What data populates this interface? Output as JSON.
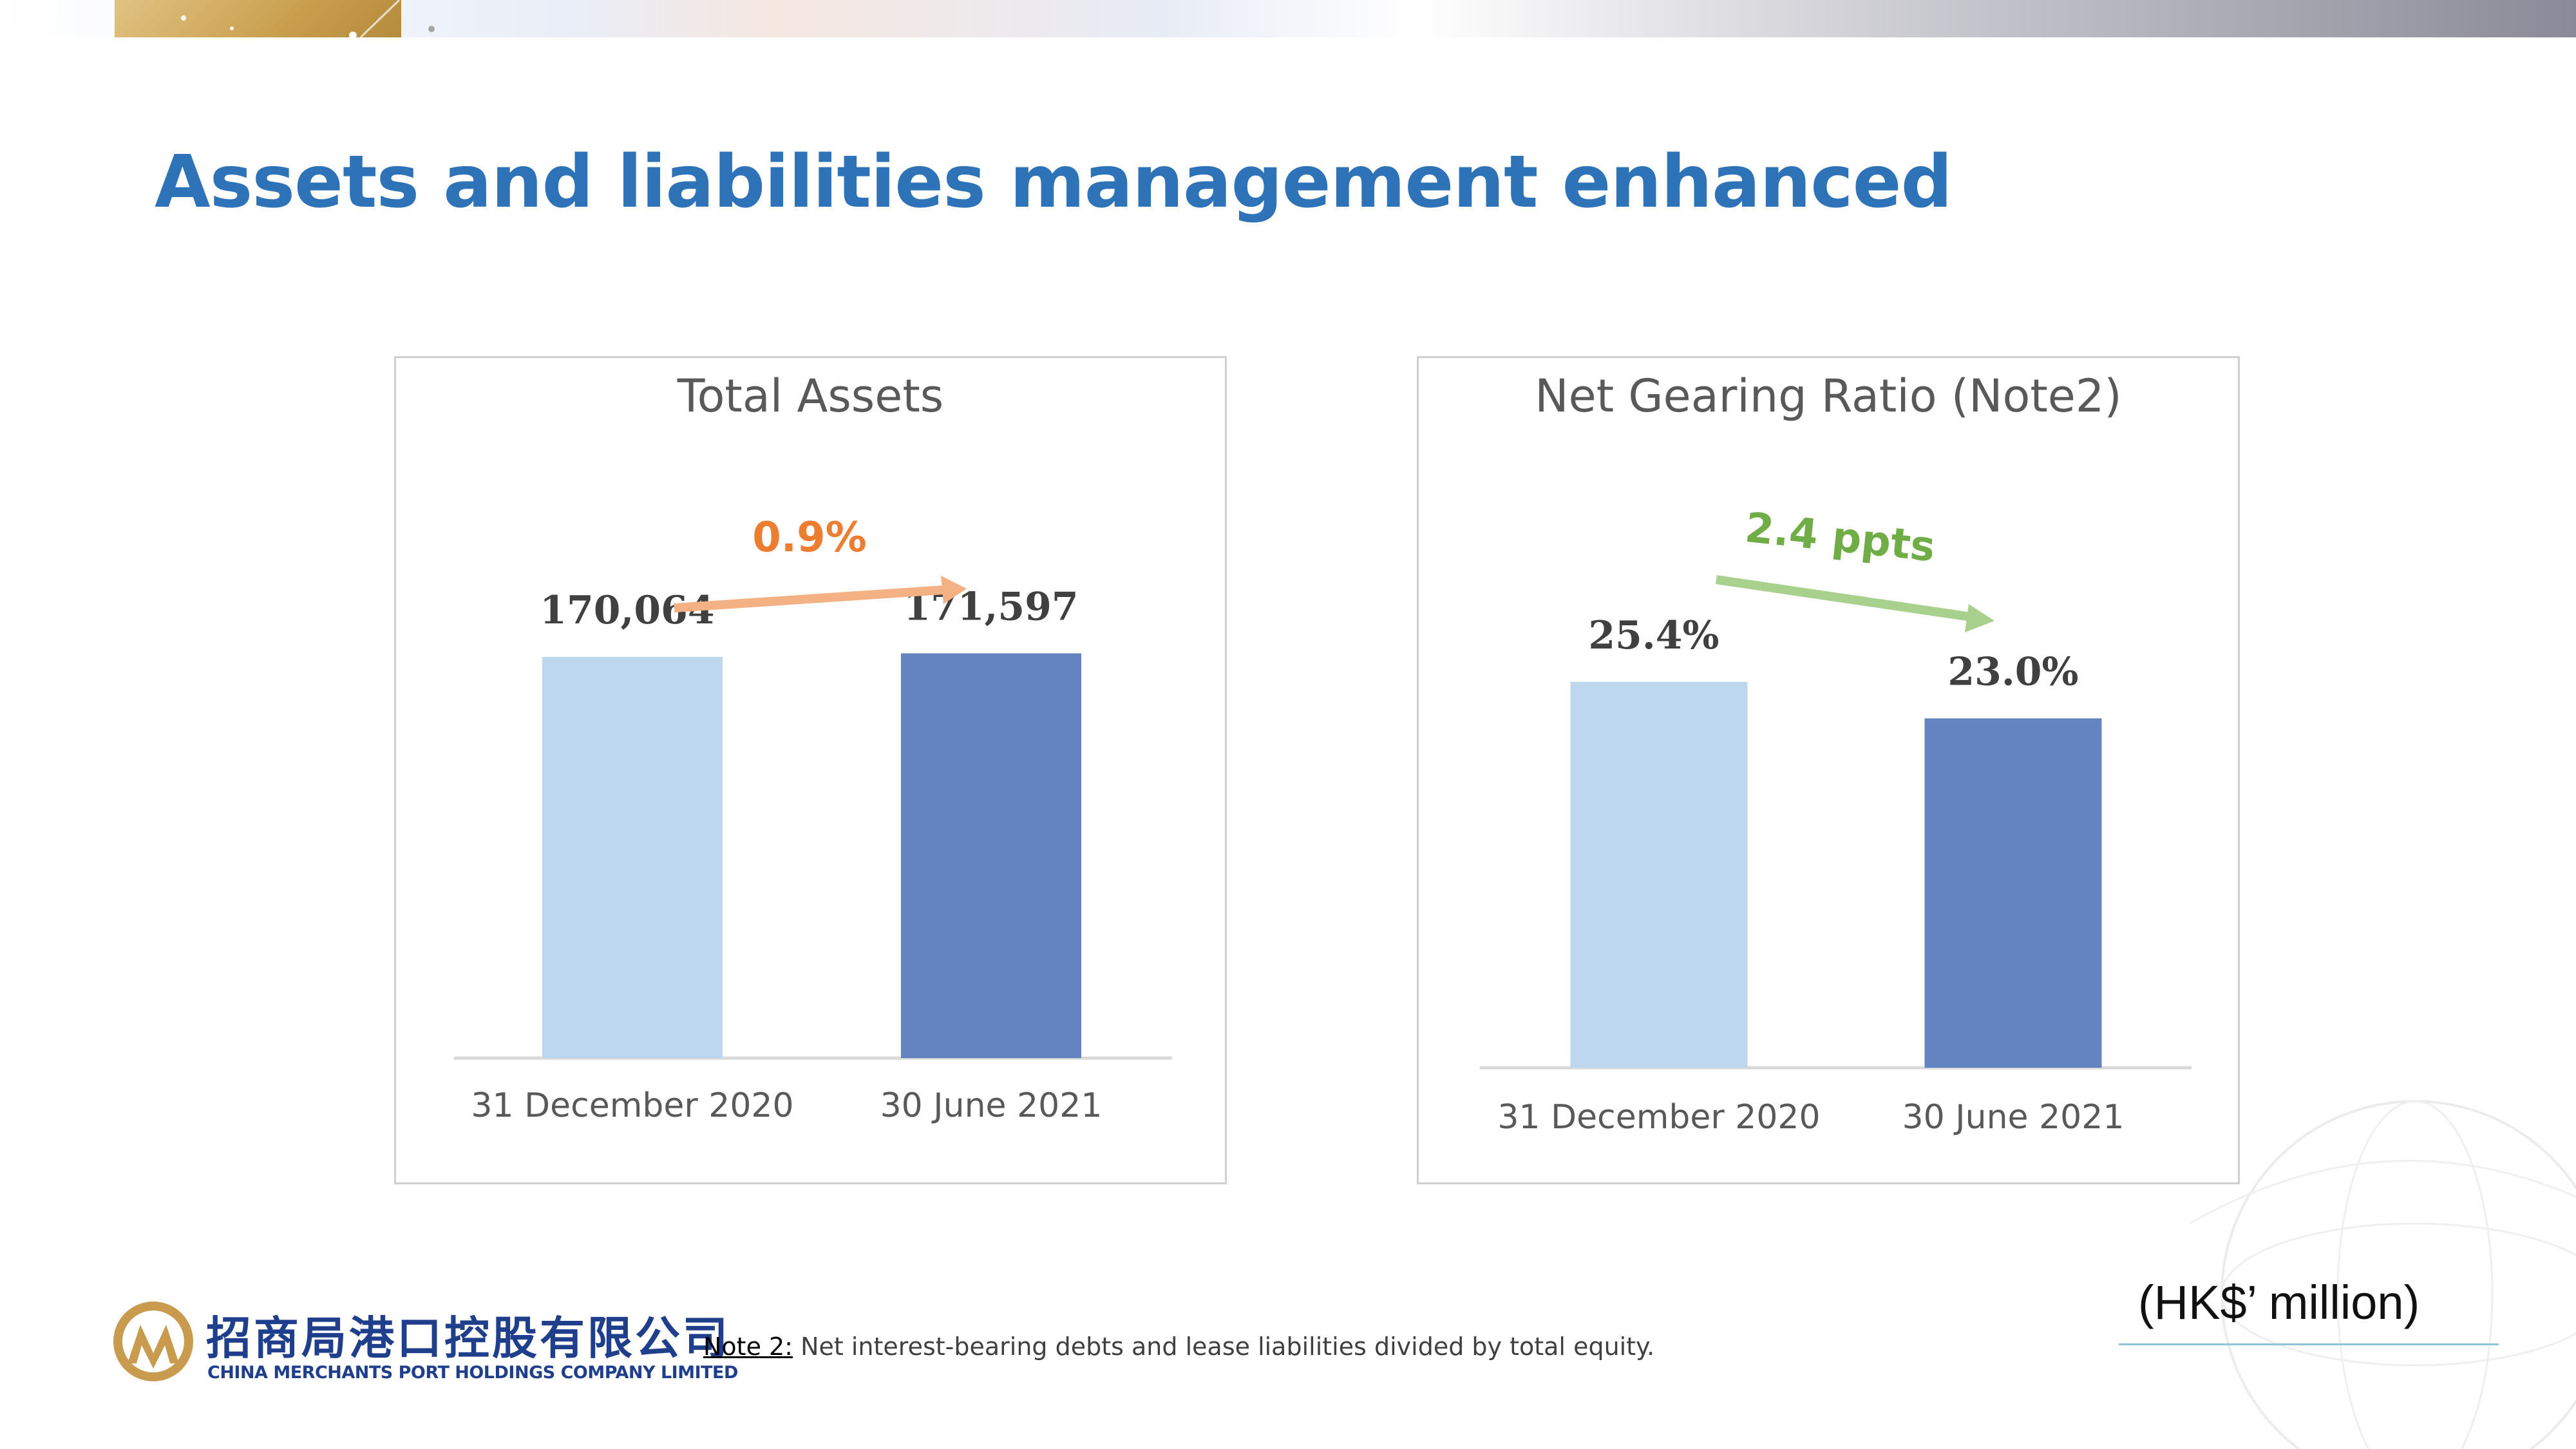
{
  "slide": {
    "title": "Assets and liabilities management enhanced",
    "unit": "(HK$’ million)",
    "note_label": "Note 2:",
    "note_text": " Net interest-bearing debts and lease liabilities divided by total equity."
  },
  "logo": {
    "chinese_name": "招商局港口控股有限公司",
    "english_name": "CHINA MERCHANTS PORT HOLDINGS COMPANY LIMITED"
  },
  "colors": {
    "title": "#2e73b8",
    "bar_light": "#bdd7ee",
    "bar_dark": "#6384c1",
    "change_up": "#ed7d31",
    "change_down": "#70ad47"
  },
  "chart_data": [
    {
      "type": "bar",
      "title": "Total Assets",
      "categories": [
        "31 December 2020",
        "30 June 2021"
      ],
      "values": [
        170064,
        171597
      ],
      "value_labels": [
        "170,064",
        "171,597"
      ],
      "ylim": [
        0,
        172000
      ],
      "grid": false,
      "annotation": {
        "text": "0.9%",
        "direction": "up"
      }
    },
    {
      "type": "bar",
      "title": "Net Gearing Ratio (Note2)",
      "categories": [
        "31 December 2020",
        "30 June 2021"
      ],
      "values": [
        25.4,
        23.0
      ],
      "value_labels": [
        "25.4%",
        "23.0%"
      ],
      "ylim": [
        0,
        26.2
      ],
      "grid": false,
      "annotation": {
        "text": "2.4 ppts",
        "direction": "down"
      }
    }
  ]
}
